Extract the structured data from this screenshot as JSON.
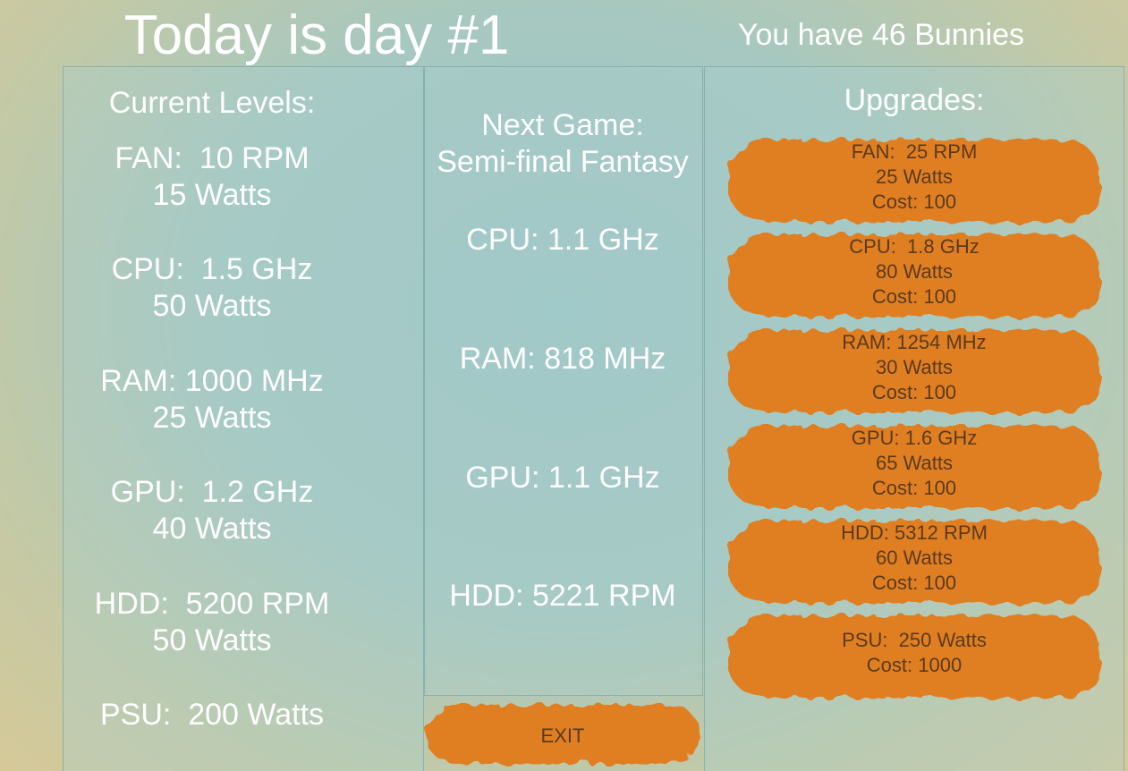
{
  "header": {
    "title": "Today is day #1",
    "bunnies": "You have 46 Bunnies"
  },
  "current_levels": {
    "heading": "Current Levels:",
    "items": [
      [
        "FAN:  10 RPM",
        "15 Watts"
      ],
      [
        "CPU:  1.5 GHz",
        "50 Watts"
      ],
      [
        "RAM: 1000 MHz",
        "25 Watts"
      ],
      [
        "GPU:  1.2 GHz",
        "40 Watts"
      ],
      [
        "HDD:  5200 RPM",
        "50 Watts"
      ],
      [
        "PSU:  200 Watts"
      ]
    ]
  },
  "next_game": {
    "heading": "Next Game:",
    "name": "Semi-final Fantasy",
    "requirements": [
      "CPU: 1.1 GHz",
      "RAM: 818 MHz",
      "GPU: 1.1 GHz",
      "HDD: 5221 RPM"
    ]
  },
  "upgrades": {
    "heading": "Upgrades:",
    "buttons": [
      [
        "FAN:  25 RPM",
        "25 Watts",
        "Cost: 100"
      ],
      [
        "CPU:  1.8 GHz",
        "80 Watts",
        "Cost: 100"
      ],
      [
        "RAM: 1254 MHz",
        "30 Watts",
        "Cost: 100"
      ],
      [
        "GPU: 1.6 GHz",
        "65 Watts",
        "Cost: 100"
      ],
      [
        "HDD: 5312 RPM",
        "60 Watts",
        "Cost: 100"
      ],
      [
        "PSU:  250 Watts",
        "Cost: 1000"
      ]
    ]
  },
  "exit": "EXIT"
}
